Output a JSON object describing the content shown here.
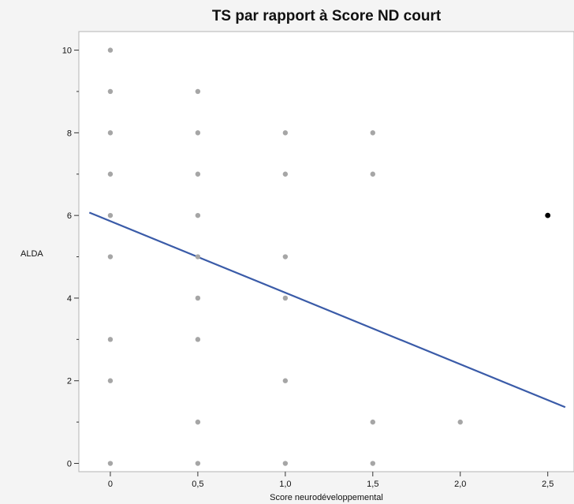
{
  "chart_data": {
    "type": "scatter",
    "title": "TS par rapport à Score ND court",
    "xlabel": "Score neurodéveloppemental",
    "ylabel": "ALDA",
    "xlim": [
      -0.18,
      2.65
    ],
    "ylim": [
      -0.2,
      10.45
    ],
    "xticks": [
      {
        "value": 0,
        "label": "0"
      },
      {
        "value": 0.5,
        "label": "0,5"
      },
      {
        "value": 1.0,
        "label": "1,0"
      },
      {
        "value": 1.5,
        "label": "1,5"
      },
      {
        "value": 2.0,
        "label": "2,0"
      },
      {
        "value": 2.5,
        "label": "2,5"
      }
    ],
    "yticks": [
      0,
      2,
      4,
      6,
      8,
      10
    ],
    "y_minor_ticks": [
      1,
      3,
      5,
      7,
      9
    ],
    "grid": false,
    "colors": {
      "point": "#a6a6a6",
      "highlighted_point": "#000000",
      "fit_line": "#3a5ba8",
      "plot_background": "#ffffff"
    },
    "points": [
      {
        "x": 0,
        "y": 10
      },
      {
        "x": 0,
        "y": 9
      },
      {
        "x": 0,
        "y": 8
      },
      {
        "x": 0,
        "y": 7
      },
      {
        "x": 0,
        "y": 6
      },
      {
        "x": 0,
        "y": 5
      },
      {
        "x": 0,
        "y": 3
      },
      {
        "x": 0,
        "y": 2
      },
      {
        "x": 0,
        "y": 0
      },
      {
        "x": 0.5,
        "y": 9
      },
      {
        "x": 0.5,
        "y": 8
      },
      {
        "x": 0.5,
        "y": 7
      },
      {
        "x": 0.5,
        "y": 6
      },
      {
        "x": 0.5,
        "y": 5
      },
      {
        "x": 0.5,
        "y": 4
      },
      {
        "x": 0.5,
        "y": 3
      },
      {
        "x": 0.5,
        "y": 1
      },
      {
        "x": 0.5,
        "y": 0
      },
      {
        "x": 1.0,
        "y": 8
      },
      {
        "x": 1.0,
        "y": 7
      },
      {
        "x": 1.0,
        "y": 5
      },
      {
        "x": 1.0,
        "y": 4
      },
      {
        "x": 1.0,
        "y": 2
      },
      {
        "x": 1.0,
        "y": 0
      },
      {
        "x": 1.5,
        "y": 8
      },
      {
        "x": 1.5,
        "y": 7
      },
      {
        "x": 1.5,
        "y": 1
      },
      {
        "x": 1.5,
        "y": 0
      },
      {
        "x": 2.0,
        "y": 1
      }
    ],
    "highlighted_points": [
      {
        "x": 2.5,
        "y": 6
      }
    ],
    "fit_line": {
      "x": [
        -0.12,
        2.6
      ],
      "y": [
        6.07,
        1.36
      ]
    }
  }
}
